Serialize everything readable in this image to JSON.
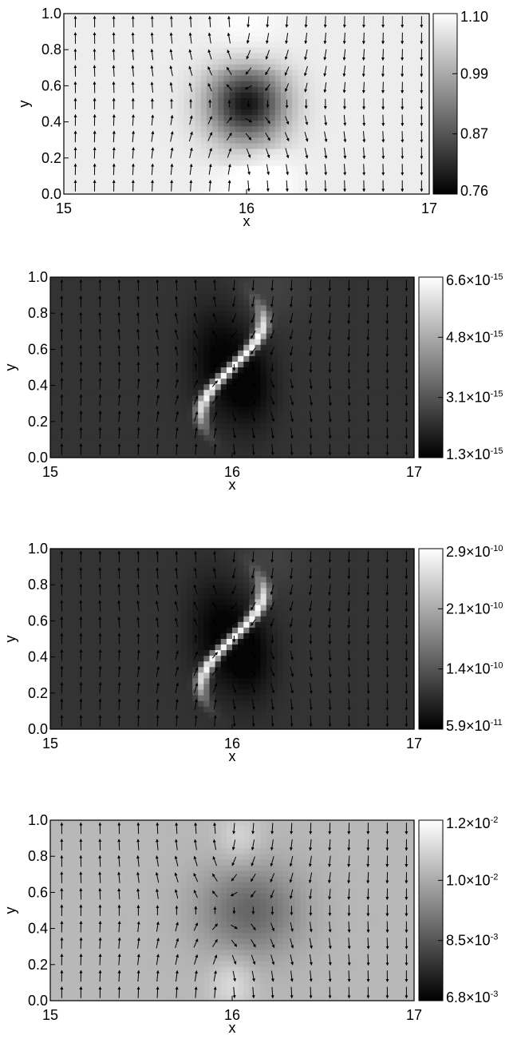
{
  "chart_data": [
    {
      "type": "heatmap",
      "xlabel": "x",
      "ylabel": "y",
      "xlim": [
        15,
        17
      ],
      "ylim": [
        0,
        1
      ],
      "xticks": [
        "15",
        "16",
        "17"
      ],
      "yticks": [
        "0.0",
        "0.2",
        "0.4",
        "0.6",
        "0.8",
        "1.0"
      ],
      "colorbar": {
        "min": 0.76,
        "max": 1.1,
        "ticks": [
          "1.10",
          "0.99",
          "0.87",
          "0.76"
        ]
      },
      "field": {
        "pattern": "vortex-dark-core",
        "center": [
          16.0,
          0.5
        ],
        "background": 0.93
      },
      "vectors": "uniform upward flow left, downward flow right, vortex near (16, 0.5)"
    },
    {
      "type": "heatmap",
      "xlabel": "x",
      "ylabel": "y",
      "xlim": [
        15,
        17
      ],
      "ylim": [
        0,
        1
      ],
      "xticks": [
        "15",
        "16",
        "17"
      ],
      "yticks": [
        "0.0",
        "0.2",
        "0.4",
        "0.6",
        "0.8",
        "1.0"
      ],
      "colorbar": {
        "min": 1.3e-15,
        "max": 6.6e-15,
        "ticks": [
          {
            "m": "6.6",
            "e": "-15"
          },
          {
            "m": "4.8",
            "e": "-15"
          },
          {
            "m": "3.1",
            "e": "-15"
          },
          {
            "m": "1.3",
            "e": "-15"
          }
        ]
      },
      "field": {
        "pattern": "s-shaped-bright-sheet",
        "center": [
          16.0,
          0.5
        ],
        "background": 0.2
      },
      "vectors": "uniform upward flow left, downward flow right, vortex near (16, 0.5)"
    },
    {
      "type": "heatmap",
      "xlabel": "x",
      "ylabel": "y",
      "xlim": [
        15,
        17
      ],
      "ylim": [
        0,
        1
      ],
      "xticks": [
        "15",
        "16",
        "17"
      ],
      "yticks": [
        "0.0",
        "0.2",
        "0.4",
        "0.6",
        "0.8",
        "1.0"
      ],
      "colorbar": {
        "min": 5.9e-11,
        "max": 2.9e-10,
        "ticks": [
          {
            "m": "2.9",
            "e": "-10"
          },
          {
            "m": "2.1",
            "e": "-10"
          },
          {
            "m": "1.4",
            "e": "-10"
          },
          {
            "m": "5.9",
            "e": "-11"
          }
        ]
      },
      "field": {
        "pattern": "s-shaped-bright-sheet",
        "center": [
          16.0,
          0.5
        ],
        "background": 0.2
      },
      "vectors": "uniform upward flow left, downward flow right, vortex near (16, 0.5)"
    },
    {
      "type": "heatmap",
      "xlabel": "x",
      "ylabel": "y",
      "xlim": [
        15,
        17
      ],
      "ylim": [
        0,
        1
      ],
      "xticks": [
        "15",
        "16",
        "17"
      ],
      "yticks": [
        "0.0",
        "0.2",
        "0.4",
        "0.6",
        "0.8",
        "1.0"
      ],
      "colorbar": {
        "min": 0.0068,
        "max": 0.012,
        "ticks": [
          {
            "m": "1.2",
            "e": "-2"
          },
          {
            "m": "1.0",
            "e": "-2"
          },
          {
            "m": "8.5",
            "e": "-3"
          },
          {
            "m": "6.8",
            "e": "-3"
          }
        ]
      },
      "field": {
        "pattern": "vortex-soft-core",
        "center": [
          16.0,
          0.5
        ],
        "background": 0.72
      },
      "vectors": "uniform upward flow left, downward flow right, vortex near (16, 0.5)"
    }
  ]
}
